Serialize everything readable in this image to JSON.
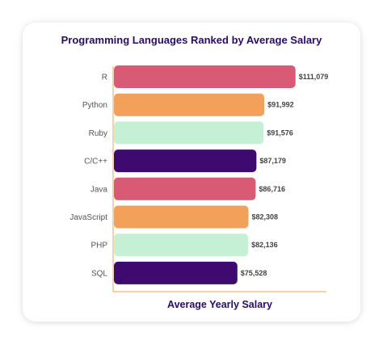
{
  "chart_data": {
    "type": "bar",
    "orientation": "horizontal",
    "title": "Programming Languages Ranked by Average Salary",
    "xlabel": "Average Yearly Salary",
    "ylabel": "",
    "categories": [
      "R",
      "Python",
      "Ruby",
      "C/C++",
      "Java",
      "JavaScript",
      "PHP",
      "SQL"
    ],
    "values": [
      111079,
      91992,
      91576,
      87179,
      86716,
      82308,
      82136,
      75528
    ],
    "value_labels": [
      "$111,079",
      "$91,992",
      "$91,576",
      "$87,179",
      "$86,716",
      "$82,308",
      "$82,136",
      "$75,528"
    ],
    "colors": [
      "#d95a74",
      "#f2a05a",
      "#c5f0d5",
      "#3f0a70",
      "#d95a74",
      "#f2a05a",
      "#c5f0d5",
      "#3f0a70"
    ],
    "xlim": [
      0,
      130000
    ],
    "grid": false,
    "legend": "none"
  }
}
